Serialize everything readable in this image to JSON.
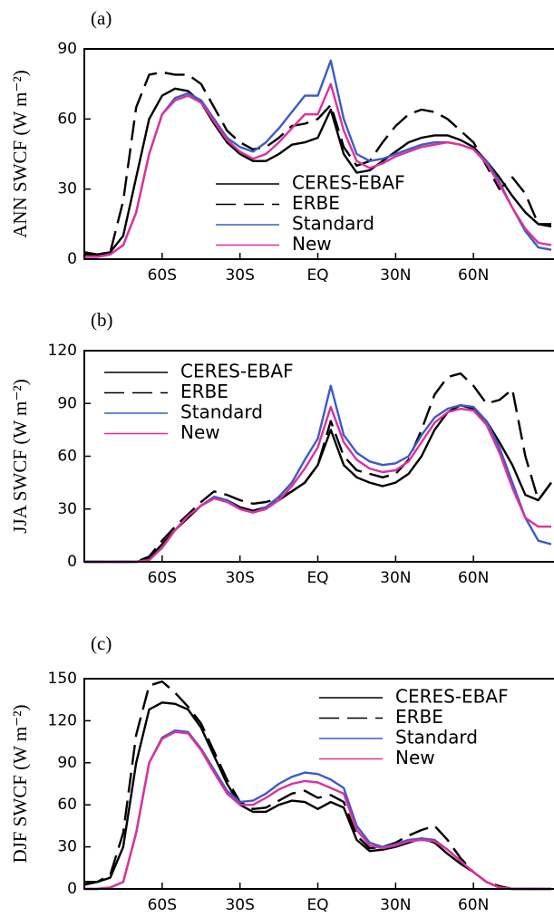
{
  "chart_data": [
    {
      "type": "line",
      "panel_label": "(a)",
      "ylabel": "ANN SWCF (W m⁻²)",
      "legend": "lower center",
      "x": [
        -90,
        -85,
        -80,
        -75,
        -70,
        -65,
        -60,
        -55,
        -50,
        -45,
        -40,
        -35,
        -30,
        -25,
        -20,
        -15,
        -10,
        -5,
        0,
        5,
        10,
        15,
        20,
        25,
        30,
        35,
        40,
        45,
        50,
        55,
        60,
        65,
        70,
        75,
        80,
        85,
        90
      ],
      "xlim": [
        -90,
        90
      ],
      "xticks": [
        {
          "value": -60,
          "label": "60S"
        },
        {
          "value": -30,
          "label": "30S"
        },
        {
          "value": 0,
          "label": "EQ"
        },
        {
          "value": 30,
          "label": "30N"
        },
        {
          "value": 60,
          "label": "60N"
        }
      ],
      "ylim": [
        0,
        90
      ],
      "yticks": [
        0,
        30,
        60,
        90
      ],
      "series": [
        {
          "name": "CERES-EBAF",
          "color": "#000000",
          "linestyle": "solid",
          "values": [
            2,
            2,
            3,
            10,
            35,
            60,
            70,
            73,
            72,
            67,
            58,
            50,
            45,
            42,
            42,
            45,
            49,
            50,
            52,
            64,
            45,
            37,
            38,
            42,
            46,
            50,
            52,
            53,
            53,
            51,
            48,
            42,
            35,
            27,
            20,
            15,
            14
          ]
        },
        {
          "name": "ERBE",
          "color": "#000000",
          "linestyle": "dashed",
          "values": [
            3,
            2,
            3,
            25,
            65,
            79,
            80,
            79,
            79,
            75,
            65,
            55,
            50,
            47,
            48,
            52,
            57,
            58,
            60,
            66,
            48,
            40,
            42,
            50,
            57,
            62,
            64,
            63,
            60,
            55,
            50,
            40,
            30,
            35,
            28,
            15,
            15
          ]
        },
        {
          "name": "Standard",
          "color": "#3b5bc8",
          "linestyle": "solid",
          "values": [
            1,
            1,
            2,
            6,
            20,
            45,
            62,
            69,
            71,
            68,
            60,
            52,
            48,
            46,
            50,
            56,
            63,
            70,
            70,
            85,
            60,
            45,
            42,
            43,
            45,
            47,
            49,
            50,
            50,
            49,
            47,
            42,
            33,
            22,
            12,
            5,
            4
          ]
        },
        {
          "name": "New",
          "color": "#e0309a",
          "linestyle": "solid",
          "values": [
            1,
            1,
            2,
            6,
            20,
            45,
            62,
            68,
            70,
            67,
            59,
            51,
            46,
            43,
            45,
            50,
            56,
            62,
            62,
            75,
            55,
            42,
            39,
            41,
            44,
            46,
            48,
            49,
            50,
            49,
            47,
            41,
            32,
            22,
            13,
            7,
            6
          ]
        }
      ]
    },
    {
      "type": "line",
      "panel_label": "(b)",
      "ylabel": "JJA SWCF (W m⁻²)",
      "legend": "upper left",
      "x": [
        -90,
        -85,
        -80,
        -75,
        -70,
        -65,
        -60,
        -55,
        -50,
        -45,
        -40,
        -35,
        -30,
        -25,
        -20,
        -15,
        -10,
        -5,
        0,
        5,
        10,
        15,
        20,
        25,
        30,
        35,
        40,
        45,
        50,
        55,
        60,
        65,
        70,
        75,
        80,
        85,
        90
      ],
      "xlim": [
        -90,
        90
      ],
      "xticks": [
        {
          "value": -60,
          "label": "60S"
        },
        {
          "value": -30,
          "label": "30S"
        },
        {
          "value": 0,
          "label": "EQ"
        },
        {
          "value": 30,
          "label": "30N"
        },
        {
          "value": 60,
          "label": "60N"
        }
      ],
      "ylim": [
        0,
        120
      ],
      "yticks": [
        0,
        30,
        60,
        90,
        120
      ],
      "series": [
        {
          "name": "CERES-EBAF",
          "color": "#000000",
          "linestyle": "solid",
          "values": [
            0,
            0,
            0,
            0,
            0,
            2,
            10,
            18,
            25,
            32,
            36,
            35,
            31,
            29,
            31,
            35,
            40,
            45,
            55,
            75,
            55,
            48,
            45,
            43,
            45,
            50,
            60,
            75,
            85,
            89,
            87,
            80,
            68,
            55,
            38,
            35,
            45
          ]
        },
        {
          "name": "ERBE",
          "color": "#000000",
          "linestyle": "dashed",
          "values": [
            0,
            0,
            0,
            0,
            0,
            3,
            12,
            20,
            27,
            34,
            40,
            38,
            35,
            33,
            34,
            36,
            40,
            45,
            55,
            80,
            60,
            52,
            50,
            48,
            50,
            58,
            75,
            95,
            105,
            107,
            100,
            90,
            92,
            98,
            60,
            35,
            45
          ]
        },
        {
          "name": "Standard",
          "color": "#3b5bc8",
          "linestyle": "solid",
          "values": [
            0,
            0,
            0,
            0,
            0,
            1,
            8,
            18,
            26,
            32,
            37,
            35,
            30,
            28,
            31,
            37,
            45,
            58,
            70,
            100,
            72,
            62,
            57,
            55,
            56,
            60,
            72,
            82,
            87,
            89,
            88,
            80,
            65,
            45,
            25,
            12,
            10
          ]
        },
        {
          "name": "New",
          "color": "#e0309a",
          "linestyle": "solid",
          "values": [
            0,
            0,
            0,
            0,
            0,
            1,
            8,
            18,
            26,
            32,
            36,
            34,
            30,
            28,
            30,
            35,
            43,
            53,
            65,
            88,
            68,
            58,
            53,
            51,
            52,
            57,
            68,
            79,
            85,
            87,
            86,
            78,
            62,
            42,
            25,
            20,
            20
          ]
        }
      ]
    },
    {
      "type": "line",
      "panel_label": "(c)",
      "ylabel": "DJF SWCF (W m⁻²)",
      "legend": "upper right",
      "x": [
        -90,
        -85,
        -80,
        -75,
        -70,
        -65,
        -60,
        -55,
        -50,
        -45,
        -40,
        -35,
        -30,
        -25,
        -20,
        -15,
        -10,
        -5,
        0,
        5,
        10,
        15,
        20,
        25,
        30,
        35,
        40,
        45,
        50,
        55,
        60,
        65,
        70,
        75,
        80,
        85,
        90
      ],
      "xlim": [
        -90,
        90
      ],
      "xticks": [
        {
          "value": -60,
          "label": "60S"
        },
        {
          "value": -30,
          "label": "30S"
        },
        {
          "value": 0,
          "label": "EQ"
        },
        {
          "value": 30,
          "label": "30N"
        },
        {
          "value": 60,
          "label": "60N"
        }
      ],
      "ylim": [
        0,
        150
      ],
      "yticks": [
        0,
        30,
        60,
        90,
        120,
        150
      ],
      "series": [
        {
          "name": "CERES-EBAF",
          "color": "#000000",
          "linestyle": "solid",
          "values": [
            3,
            5,
            8,
            30,
            90,
            128,
            133,
            132,
            128,
            115,
            95,
            75,
            60,
            55,
            55,
            60,
            63,
            62,
            57,
            62,
            58,
            35,
            27,
            28,
            30,
            33,
            36,
            33,
            25,
            18,
            12,
            5,
            1,
            0,
            0,
            0,
            0
          ]
        },
        {
          "name": "ERBE",
          "color": "#000000",
          "linestyle": "dashed",
          "values": [
            5,
            5,
            10,
            40,
            110,
            145,
            148,
            140,
            130,
            118,
            98,
            78,
            62,
            57,
            58,
            63,
            68,
            70,
            65,
            67,
            62,
            38,
            29,
            30,
            33,
            38,
            42,
            45,
            35,
            22,
            12,
            5,
            2,
            0,
            0,
            0,
            0
          ]
        },
        {
          "name": "Standard",
          "color": "#3b5bc8",
          "linestyle": "solid",
          "values": [
            0,
            0,
            1,
            5,
            40,
            90,
            108,
            113,
            112,
            100,
            85,
            70,
            62,
            63,
            68,
            75,
            80,
            83,
            82,
            78,
            72,
            45,
            33,
            30,
            32,
            35,
            36,
            35,
            28,
            20,
            12,
            5,
            1,
            0,
            0,
            0,
            0
          ]
        },
        {
          "name": "New",
          "color": "#e0309a",
          "linestyle": "solid",
          "values": [
            0,
            0,
            1,
            5,
            40,
            90,
            107,
            112,
            111,
            99,
            83,
            68,
            60,
            60,
            65,
            71,
            75,
            77,
            76,
            72,
            68,
            42,
            31,
            29,
            31,
            34,
            35,
            34,
            28,
            20,
            12,
            5,
            1,
            0,
            0,
            0,
            0
          ]
        }
      ]
    }
  ]
}
